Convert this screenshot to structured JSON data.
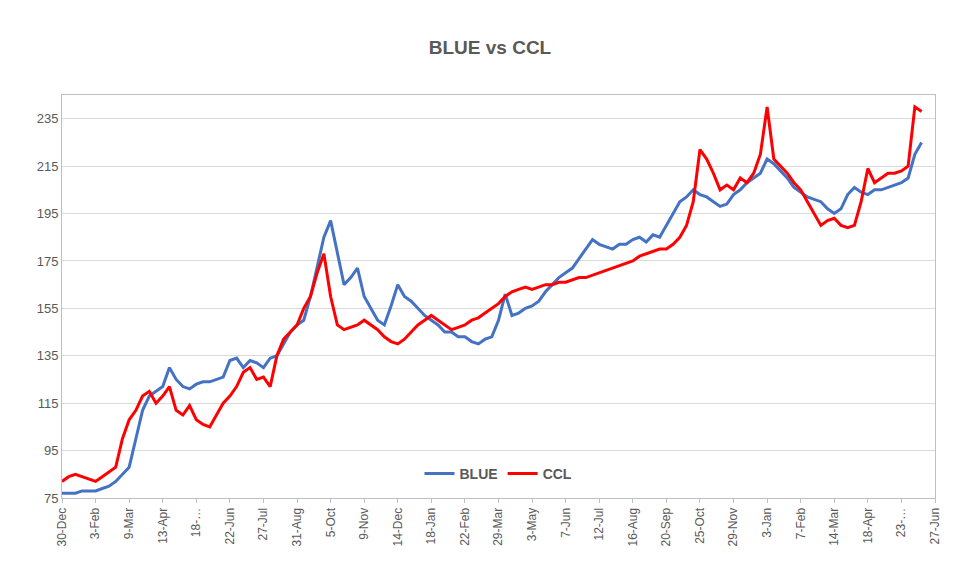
{
  "chart_data": {
    "type": "line",
    "title": "BLUE vs CCL",
    "categories": [
      "30-Dec",
      null,
      null,
      null,
      null,
      "3-Feb",
      null,
      null,
      null,
      null,
      "9-Mar",
      null,
      null,
      null,
      null,
      "13-Apr",
      null,
      null,
      null,
      null,
      "18-…",
      null,
      null,
      null,
      null,
      "22-Jun",
      null,
      null,
      null,
      null,
      "27-Jul",
      null,
      null,
      null,
      null,
      "31-Aug",
      null,
      null,
      null,
      null,
      "5-Oct",
      null,
      null,
      null,
      null,
      "9-Nov",
      null,
      null,
      null,
      null,
      "14-Dec",
      null,
      null,
      null,
      null,
      "18-Jan",
      null,
      null,
      null,
      null,
      "22-Feb",
      null,
      null,
      null,
      null,
      "29-Mar",
      null,
      null,
      null,
      null,
      "3-May",
      null,
      null,
      null,
      null,
      "7-Jun",
      null,
      null,
      null,
      null,
      "12-Jul",
      null,
      null,
      null,
      null,
      "16-Aug",
      null,
      null,
      null,
      null,
      "20-Sep",
      null,
      null,
      null,
      null,
      "25-Oct",
      null,
      null,
      null,
      null,
      "29-Nov",
      null,
      null,
      null,
      null,
      "3-Jan",
      null,
      null,
      null,
      null,
      "7-Feb",
      null,
      null,
      null,
      null,
      "14-Mar",
      null,
      null,
      null,
      null,
      "18-Apr",
      null,
      null,
      null,
      null,
      "23-…",
      null,
      null,
      null,
      null,
      "27-Jun"
    ],
    "series": [
      {
        "name": "BLUE",
        "color": "#4472c4",
        "values": [
          77,
          77,
          77,
          78,
          78,
          78,
          79,
          80,
          82,
          85,
          88,
          100,
          112,
          118,
          120,
          122,
          130,
          125,
          122,
          121,
          123,
          124,
          124,
          125,
          126,
          133,
          134,
          130,
          133,
          132,
          130,
          134,
          135,
          140,
          145,
          148,
          150,
          160,
          172,
          185,
          192,
          178,
          165,
          168,
          172,
          160,
          155,
          150,
          148,
          156,
          165,
          160,
          158,
          155,
          152,
          150,
          148,
          145,
          145,
          143,
          143,
          141,
          140,
          142,
          143,
          150,
          161,
          152,
          153,
          155,
          156,
          158,
          162,
          165,
          168,
          170,
          172,
          176,
          180,
          184,
          182,
          181,
          180,
          182,
          182,
          184,
          185,
          183,
          186,
          185,
          190,
          195,
          200,
          202,
          205,
          203,
          202,
          200,
          198,
          199,
          203,
          205,
          208,
          210,
          212,
          218,
          216,
          213,
          210,
          206,
          204,
          202,
          201,
          200,
          197,
          195,
          197,
          203,
          206,
          204,
          203,
          205,
          205,
          206,
          207,
          208,
          210,
          220,
          225,
          null,
          null
        ]
      },
      {
        "name": "CCL",
        "color": "#ff0000",
        "values": [
          82,
          84,
          85,
          84,
          83,
          82,
          84,
          86,
          88,
          100,
          108,
          112,
          118,
          120,
          115,
          118,
          122,
          112,
          110,
          114,
          108,
          106,
          105,
          110,
          115,
          118,
          122,
          128,
          130,
          125,
          126,
          122,
          135,
          142,
          145,
          148,
          155,
          160,
          170,
          178,
          160,
          148,
          146,
          147,
          148,
          150,
          148,
          146,
          143,
          141,
          140,
          142,
          145,
          148,
          150,
          152,
          150,
          148,
          146,
          147,
          148,
          150,
          151,
          153,
          155,
          157,
          160,
          162,
          163,
          164,
          163,
          164,
          165,
          165,
          166,
          166,
          167,
          168,
          168,
          169,
          170,
          171,
          172,
          173,
          174,
          175,
          177,
          178,
          179,
          180,
          180,
          182,
          185,
          190,
          200,
          222,
          218,
          212,
          205,
          207,
          205,
          210,
          208,
          212,
          220,
          240,
          218,
          215,
          212,
          208,
          205,
          200,
          195,
          190,
          192,
          193,
          190,
          189,
          190,
          200,
          214,
          208,
          210,
          212,
          212,
          213,
          215,
          240,
          238,
          null,
          null
        ]
      }
    ],
    "ylim": [
      75,
      245
    ],
    "yticks": [
      75,
      95,
      115,
      135,
      155,
      175,
      195,
      215,
      235
    ],
    "grid": true,
    "legend": "bottom"
  }
}
